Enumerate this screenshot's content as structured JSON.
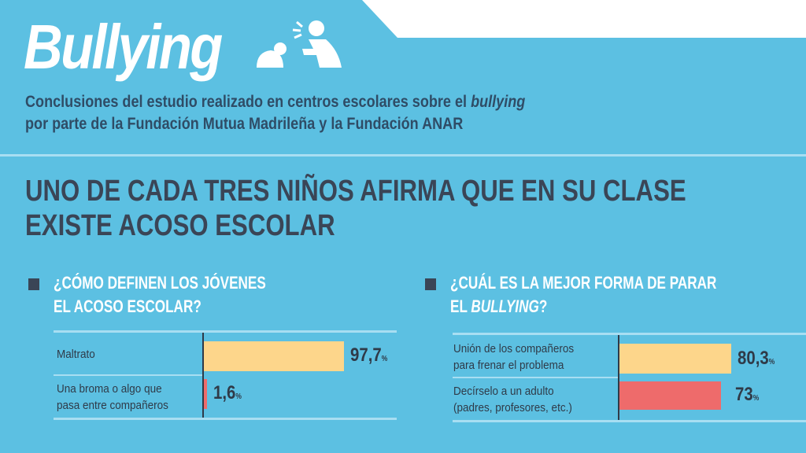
{
  "header": {
    "title": "Bullying",
    "icon": "bullying-people-icon",
    "subtitle_line1_pre": "Conclusiones del estudio realizado en centros escolares sobre el ",
    "subtitle_line1_em": "bullying",
    "subtitle_line2": "por parte de la Fundación Mutua Madrileña y la Fundación ANAR"
  },
  "headline": {
    "line1": "UNO DE CADA TRES NIÑOS AFIRMA QUE EN SU CLASE",
    "line2": "EXISTE ACOSO ESCOLAR"
  },
  "colors": {
    "background": "#5cc0e2",
    "bar_primary": "#fdd68b",
    "bar_secondary": "#ee6b6b",
    "text_dark": "#3a4556"
  },
  "chart_data": [
    {
      "type": "bar",
      "orientation": "horizontal",
      "title_line1": "¿CÓMO DEFINEN LOS JÓVENES",
      "title_line2": "EL ACOSO ESCOLAR?",
      "categories": [
        [
          "Maltrato"
        ],
        [
          "Una broma o algo que",
          "pasa entre compañeros"
        ]
      ],
      "values": [
        97.7,
        1.6
      ],
      "value_labels": [
        "97,7",
        "1,6"
      ],
      "unit": "%"
    },
    {
      "type": "bar",
      "orientation": "horizontal",
      "title_line1": "¿CUÁL ES LA MEJOR FORMA DE PARAR",
      "title_line2_pre": "EL ",
      "title_line2_em": "BULLYING",
      "title_line2_post": "?",
      "categories": [
        [
          "Unión de los compañeros",
          "para frenar  el problema"
        ],
        [
          "Decírselo a un adulto",
          "(padres, profesores, etc.)"
        ]
      ],
      "values": [
        80.3,
        73
      ],
      "value_labels": [
        "80,3",
        "73"
      ],
      "unit": "%"
    }
  ]
}
